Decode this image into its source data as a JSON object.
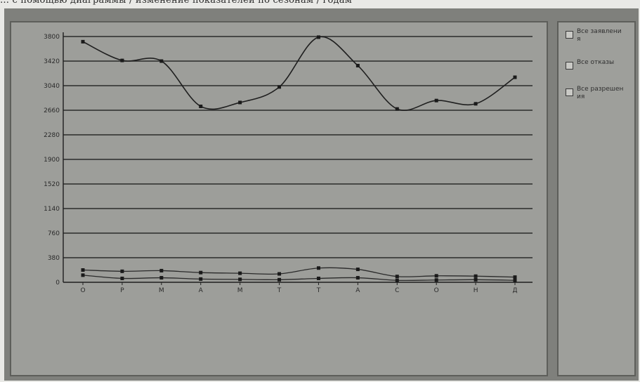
{
  "caption": "… с помощью диаграммы / изменение показателей по сезонам / годам",
  "chart_data": {
    "type": "line",
    "title": "",
    "xlabel": "",
    "ylabel": "",
    "categories": [
      "О",
      "Р",
      "М",
      "А",
      "М",
      "Т",
      "Т",
      "А",
      "С",
      "О",
      "Н",
      "Д"
    ],
    "y_ticks": [
      "3800",
      "3420",
      "3040",
      "2660",
      "2280",
      "1900",
      "1520",
      "1140",
      "760",
      "380",
      "0"
    ],
    "ylim": [
      0,
      3800
    ],
    "grid": true,
    "legend_position": "right",
    "series": [
      {
        "name": "Все заявления",
        "values": [
          3720,
          3430,
          3420,
          2720,
          2780,
          3020,
          3790,
          3350,
          2680,
          2810,
          2760,
          3170
        ],
        "color": "#1f1f1f"
      },
      {
        "name": "Все отказы",
        "values": [
          190,
          170,
          180,
          150,
          140,
          130,
          220,
          200,
          90,
          100,
          95,
          80
        ],
        "color": "#2a2a2a"
      },
      {
        "name": "Все разрешения",
        "values": [
          110,
          60,
          70,
          50,
          45,
          40,
          60,
          70,
          30,
          35,
          40,
          30
        ],
        "color": "#2a2a2a"
      }
    ]
  },
  "legend": [
    {
      "label": "Все заявления"
    },
    {
      "label": "Все отказы"
    },
    {
      "label": "Все разрешения"
    }
  ]
}
